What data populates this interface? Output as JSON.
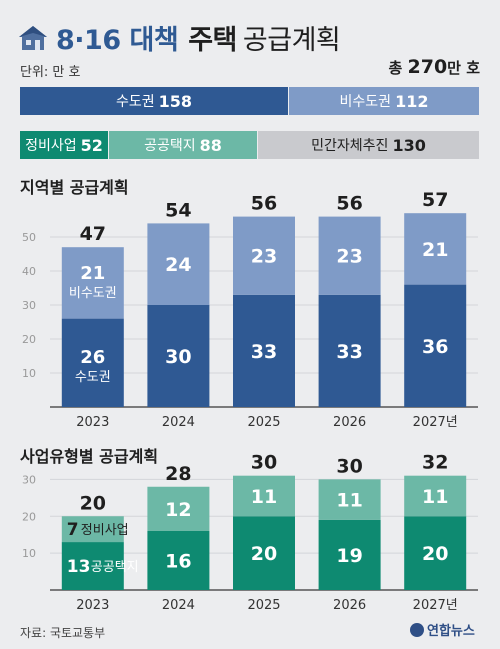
{
  "header": {
    "title_main": "8·16 대책",
    "title_key": "주택",
    "title_rest": "공급계획",
    "unit": "단위: 만 호",
    "total_label": "총",
    "total_value": "270",
    "total_unit": "만 호"
  },
  "summary": {
    "row1": [
      {
        "label": "수도권",
        "value": "158",
        "color": "#2f5993"
      },
      {
        "label": "비수도권",
        "value": "112",
        "color": "#7f9bc7"
      }
    ],
    "row2": [
      {
        "label": "정비사업",
        "value": "52",
        "color": "#0e8a71"
      },
      {
        "label": "공공택지",
        "value": "88",
        "color": "#6cb8a6"
      },
      {
        "label": "민간자체추진",
        "value": "130",
        "color": "#c9cace"
      }
    ]
  },
  "colors": {
    "capital": "#2f5993",
    "noncapital": "#7f9bc7",
    "redevelop": "#0e8a71",
    "publand": "#6cb8a6",
    "grid": "#d3d5d9",
    "tick": "#999999"
  },
  "chart_data": [
    {
      "type": "bar",
      "stacked": true,
      "title": "지역별 공급계획",
      "categories": [
        "2023",
        "2024",
        "2025",
        "2026",
        "2027년"
      ],
      "series": [
        {
          "name": "수도권",
          "values": [
            26,
            30,
            33,
            33,
            36
          ]
        },
        {
          "name": "비수도권",
          "values": [
            21,
            24,
            23,
            23,
            21
          ]
        }
      ],
      "totals": [
        47,
        54,
        56,
        56,
        57
      ],
      "ylim": [
        0,
        60
      ],
      "yticks": [
        10,
        20,
        30,
        40,
        50
      ],
      "grid": true
    },
    {
      "type": "bar",
      "stacked": true,
      "title": "사업유형별 공급계획",
      "categories": [
        "2023",
        "2024",
        "2025",
        "2026",
        "2027년"
      ],
      "series": [
        {
          "name": "공공택지",
          "values": [
            13,
            16,
            20,
            19,
            20
          ]
        },
        {
          "name": "정비사업",
          "values": [
            7,
            12,
            11,
            11,
            11
          ]
        }
      ],
      "totals": [
        20,
        28,
        30,
        30,
        32
      ],
      "ylim": [
        0,
        32
      ],
      "yticks": [
        10,
        20,
        30
      ],
      "grid": true
    }
  ],
  "footer": {
    "source": "자료: 국토교통부",
    "logo": "연합뉴스"
  }
}
